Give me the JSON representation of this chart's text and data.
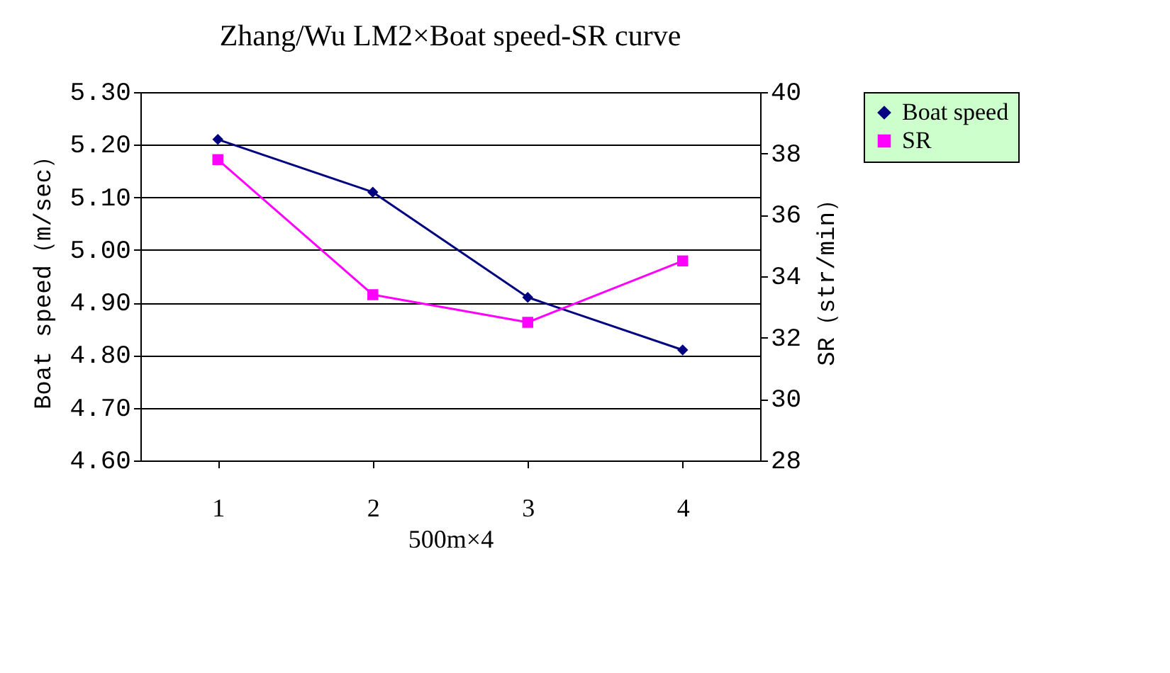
{
  "chart_data": {
    "type": "line",
    "title": "Zhang/Wu LM2×Boat speed-SR curve",
    "xlabel": "500m×4",
    "ylabel": "Boat speed（m/sec）",
    "y2label": "SR（str/min）",
    "categories": [
      "1",
      "2",
      "3",
      "4"
    ],
    "series": [
      {
        "name": "Boat speed",
        "color": "#000080",
        "marker": "diamond",
        "values": [
          5.21,
          5.11,
          4.91,
          4.81
        ]
      },
      {
        "name": "SR",
        "color": "#ff00ff",
        "marker": "square",
        "axis": "y2",
        "values": [
          37.8,
          33.4,
          32.5,
          34.5
        ]
      }
    ],
    "ylim": [
      4.6,
      5.3
    ],
    "yticks": [
      {
        "value": 4.6,
        "label": "4.60"
      },
      {
        "value": 4.7,
        "label": "4.70"
      },
      {
        "value": 4.8,
        "label": "4.80"
      },
      {
        "value": 4.9,
        "label": "4.90"
      },
      {
        "value": 5.0,
        "label": "5.00"
      },
      {
        "value": 5.1,
        "label": "5.10"
      },
      {
        "value": 5.2,
        "label": "5.20"
      },
      {
        "value": 5.3,
        "label": "5.30"
      }
    ],
    "y2lim": [
      28,
      40
    ],
    "y2ticks": [
      28,
      30,
      32,
      34,
      36,
      38,
      40
    ],
    "grid": "y",
    "legend": "right",
    "line_style": "solid"
  }
}
